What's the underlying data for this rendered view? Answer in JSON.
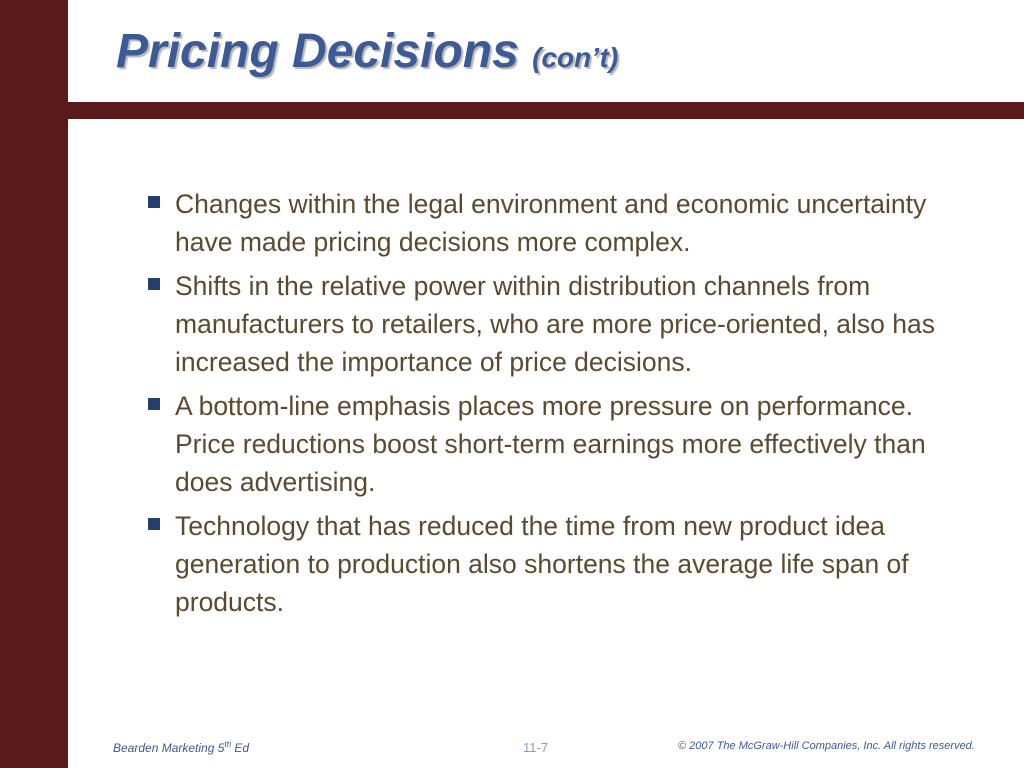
{
  "slide": {
    "title_main": "Pricing Decisions",
    "title_sub": "(con’t)",
    "bullets": [
      "Changes within the legal environment and economic uncertainty have made pricing decisions more complex.",
      "Shifts in the relative power within distribution channels from manufacturers to retailers, who are more price-oriented, also has increased the importance of price decisions.",
      "A bottom-line emphasis places more pressure on performance. Price reductions boost short-term earnings more effectively than does advertising.",
      "Technology that has reduced the time from new product idea generation to production also shortens the average life span of products."
    ]
  },
  "footer": {
    "left_text": "Bearden Marketing 5",
    "left_sup": "th",
    "left_suffix": " Ed",
    "page_number": "11-7",
    "copyright": "© 2007  The McGraw-Hill Companies, Inc.  All rights reserved."
  },
  "colors": {
    "accent_bar": "#5a1a1c",
    "title": "#3c5a95",
    "body_text": "#5b4a2e",
    "bullet_marker": "#243f6e"
  }
}
